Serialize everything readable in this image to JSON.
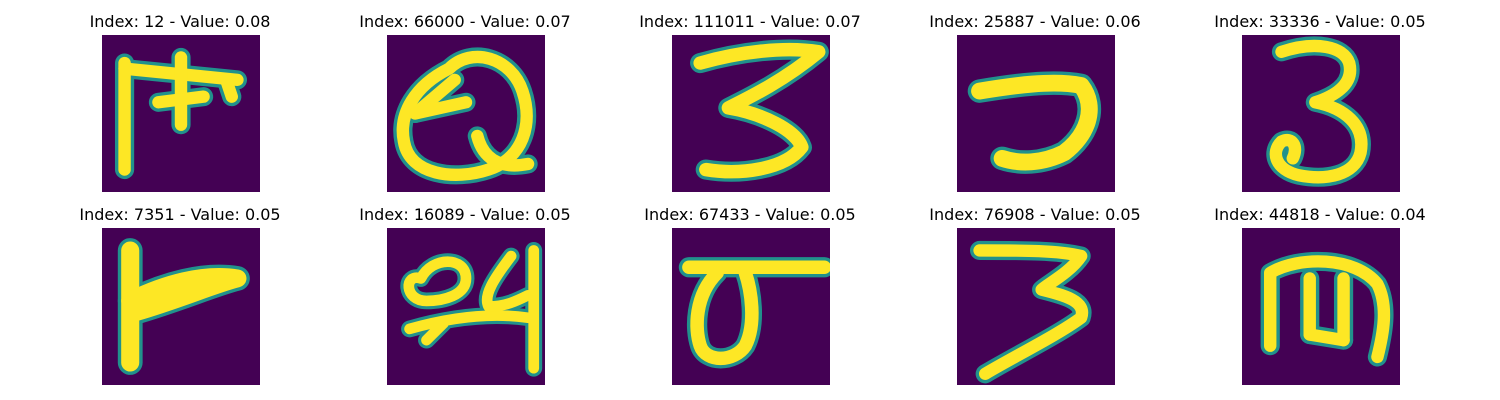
{
  "colors": {
    "background": "#440154",
    "edge": "#21918c",
    "mid": "#5ec962",
    "stroke": "#fde725"
  },
  "panels": [
    {
      "title": "Index: 12 - Value: 0.08",
      "glyph": "pitchfork-stroke"
    },
    {
      "title": "Index: 66000 - Value: 0.07",
      "glyph": "q-loop-stroke"
    },
    {
      "title": "Index: 111011 - Value: 0.07",
      "glyph": "three-stroke"
    },
    {
      "title": "Index: 25887 - Value: 0.06",
      "glyph": "seven-stroke"
    },
    {
      "title": "Index: 33336 - Value: 0.05",
      "glyph": "three-stroke"
    },
    {
      "title": "Index: 7351 - Value: 0.05",
      "glyph": "l-flag-stroke"
    },
    {
      "title": "Index: 16089 - Value: 0.05",
      "glyph": "loop-four-stroke"
    },
    {
      "title": "Index: 67433 - Value: 0.05",
      "glyph": "sigma-stroke"
    },
    {
      "title": "Index: 76908 - Value: 0.05",
      "glyph": "three-stroke"
    },
    {
      "title": "Index: 44818 - Value: 0.04",
      "glyph": "m-stroke"
    }
  ]
}
